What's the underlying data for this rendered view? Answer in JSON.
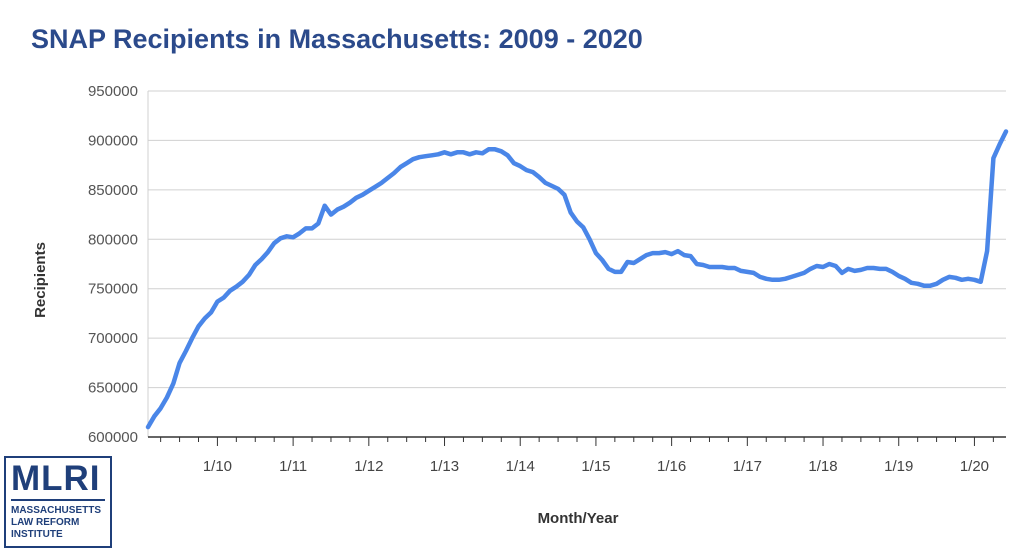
{
  "title": "SNAP Recipients in Massachusetts: 2009 - 2020",
  "logo": {
    "main": "MLRI",
    "line1": "MASSACHUSETTS",
    "line2": "LAW REFORM",
    "line3": "INSTITUTE"
  },
  "colors": {
    "line": "#4a86e8",
    "title": "#2b4a8b",
    "grid": "#d0d0d0",
    "axis": "#333333"
  },
  "chart_data": {
    "type": "line",
    "title": "SNAP Recipients in Massachusetts: 2009 - 2020",
    "xlabel": "Month/Year",
    "ylabel": "Recipients",
    "ylim": [
      600000,
      950000
    ],
    "yticks": [
      600000,
      650000,
      700000,
      750000,
      800000,
      850000,
      900000,
      950000
    ],
    "xtick_labels": [
      "1/10",
      "1/11",
      "1/12",
      "1/13",
      "1/14",
      "1/15",
      "1/16",
      "1/17",
      "1/18",
      "1/19",
      "1/20"
    ],
    "xtick_years": [
      2010,
      2011,
      2012,
      2013,
      2014,
      2015,
      2016,
      2017,
      2018,
      2019,
      2020
    ],
    "x_start": 2009.083,
    "x_end": 2020.417,
    "grid": true,
    "legend": "none",
    "series": [
      {
        "points": [
          [
            2009.083,
            610000
          ],
          [
            2009.167,
            621000
          ],
          [
            2009.25,
            629000
          ],
          [
            2009.333,
            640000
          ],
          [
            2009.417,
            654000
          ],
          [
            2009.5,
            675000
          ],
          [
            2009.583,
            687000
          ],
          [
            2009.667,
            700000
          ],
          [
            2009.75,
            712000
          ],
          [
            2009.833,
            720000
          ],
          [
            2009.917,
            726000
          ],
          [
            2010.0,
            737000
          ],
          [
            2010.083,
            741000
          ],
          [
            2010.167,
            748000
          ],
          [
            2010.25,
            752000
          ],
          [
            2010.333,
            757000
          ],
          [
            2010.417,
            764000
          ],
          [
            2010.5,
            774000
          ],
          [
            2010.583,
            780000
          ],
          [
            2010.667,
            787000
          ],
          [
            2010.75,
            796000
          ],
          [
            2010.833,
            801000
          ],
          [
            2010.917,
            803000
          ],
          [
            2011.0,
            802000
          ],
          [
            2011.083,
            806000
          ],
          [
            2011.167,
            811000
          ],
          [
            2011.25,
            811000
          ],
          [
            2011.333,
            816000
          ],
          [
            2011.417,
            834000
          ],
          [
            2011.5,
            825000
          ],
          [
            2011.583,
            830000
          ],
          [
            2011.667,
            833000
          ],
          [
            2011.75,
            837000
          ],
          [
            2011.833,
            842000
          ],
          [
            2011.917,
            845000
          ],
          [
            2012.0,
            849000
          ],
          [
            2012.083,
            853000
          ],
          [
            2012.167,
            857000
          ],
          [
            2012.25,
            862000
          ],
          [
            2012.333,
            867000
          ],
          [
            2012.417,
            873000
          ],
          [
            2012.5,
            877000
          ],
          [
            2012.583,
            881000
          ],
          [
            2012.667,
            883000
          ],
          [
            2012.75,
            884000
          ],
          [
            2012.833,
            885000
          ],
          [
            2012.917,
            886000
          ],
          [
            2013.0,
            888000
          ],
          [
            2013.083,
            886000
          ],
          [
            2013.167,
            888000
          ],
          [
            2013.25,
            888000
          ],
          [
            2013.333,
            886000
          ],
          [
            2013.417,
            888000
          ],
          [
            2013.5,
            887000
          ],
          [
            2013.583,
            891000
          ],
          [
            2013.667,
            891000
          ],
          [
            2013.75,
            889000
          ],
          [
            2013.833,
            885000
          ],
          [
            2013.917,
            877000
          ],
          [
            2014.0,
            874000
          ],
          [
            2014.083,
            870000
          ],
          [
            2014.167,
            868000
          ],
          [
            2014.25,
            863000
          ],
          [
            2014.333,
            857000
          ],
          [
            2014.417,
            854000
          ],
          [
            2014.5,
            851000
          ],
          [
            2014.583,
            845000
          ],
          [
            2014.667,
            827000
          ],
          [
            2014.75,
            818000
          ],
          [
            2014.833,
            812000
          ],
          [
            2014.917,
            800000
          ],
          [
            2015.0,
            786000
          ],
          [
            2015.083,
            779000
          ],
          [
            2015.167,
            770000
          ],
          [
            2015.25,
            767000
          ],
          [
            2015.333,
            767000
          ],
          [
            2015.417,
            777000
          ],
          [
            2015.5,
            776000
          ],
          [
            2015.583,
            780000
          ],
          [
            2015.667,
            784000
          ],
          [
            2015.75,
            786000
          ],
          [
            2015.833,
            786000
          ],
          [
            2015.917,
            787000
          ],
          [
            2016.0,
            785000
          ],
          [
            2016.083,
            788000
          ],
          [
            2016.167,
            784000
          ],
          [
            2016.25,
            783000
          ],
          [
            2016.333,
            775000
          ],
          [
            2016.417,
            774000
          ],
          [
            2016.5,
            772000
          ],
          [
            2016.583,
            772000
          ],
          [
            2016.667,
            772000
          ],
          [
            2016.75,
            771000
          ],
          [
            2016.833,
            771000
          ],
          [
            2016.917,
            768000
          ],
          [
            2017.0,
            767000
          ],
          [
            2017.083,
            766000
          ],
          [
            2017.167,
            762000
          ],
          [
            2017.25,
            760000
          ],
          [
            2017.333,
            759000
          ],
          [
            2017.417,
            759000
          ],
          [
            2017.5,
            760000
          ],
          [
            2017.583,
            762000
          ],
          [
            2017.667,
            764000
          ],
          [
            2017.75,
            766000
          ],
          [
            2017.833,
            770000
          ],
          [
            2017.917,
            773000
          ],
          [
            2018.0,
            772000
          ],
          [
            2018.083,
            775000
          ],
          [
            2018.167,
            773000
          ],
          [
            2018.25,
            766000
          ],
          [
            2018.333,
            770000
          ],
          [
            2018.417,
            768000
          ],
          [
            2018.5,
            769000
          ],
          [
            2018.583,
            771000
          ],
          [
            2018.667,
            771000
          ],
          [
            2018.75,
            770000
          ],
          [
            2018.833,
            770000
          ],
          [
            2018.917,
            767000
          ],
          [
            2019.0,
            763000
          ],
          [
            2019.083,
            760000
          ],
          [
            2019.167,
            756000
          ],
          [
            2019.25,
            755000
          ],
          [
            2019.333,
            753000
          ],
          [
            2019.417,
            753000
          ],
          [
            2019.5,
            755000
          ],
          [
            2019.583,
            759000
          ],
          [
            2019.667,
            762000
          ],
          [
            2019.75,
            761000
          ],
          [
            2019.833,
            759000
          ],
          [
            2019.917,
            760000
          ],
          [
            2020.0,
            759000
          ],
          [
            2020.083,
            757000
          ],
          [
            2020.167,
            788000
          ],
          [
            2020.25,
            882000
          ],
          [
            2020.333,
            896000
          ],
          [
            2020.417,
            909000
          ]
        ]
      }
    ]
  }
}
